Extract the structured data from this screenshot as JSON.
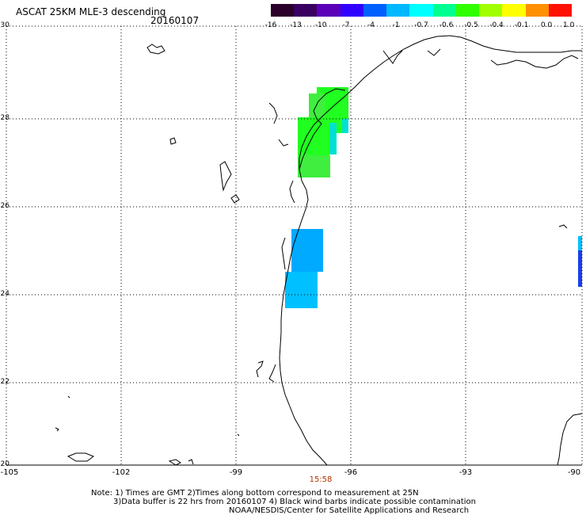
{
  "header": {
    "title": "ASCAT 25KM MLE-3 descending",
    "date": "20160107"
  },
  "colorbar": {
    "tick_labels": [
      "-16",
      "-13",
      "-10",
      "-7",
      "-4",
      "-1",
      "-0.7",
      "-0.6",
      "-0.5",
      "-0.4",
      "-0.1",
      "0.0",
      "1.0"
    ],
    "colors": [
      "#2a002a",
      "#3a0060",
      "#5a00b8",
      "#3000ff",
      "#0060ff",
      "#00b8ff",
      "#00ffff",
      "#00ff90",
      "#30ff00",
      "#a0ff00",
      "#ffff00",
      "#ff9000",
      "#ff1000"
    ]
  },
  "map": {
    "lat_labels": [
      "30",
      "28",
      "26",
      "24",
      "22",
      "20"
    ],
    "lon_labels": [
      "-105",
      "-102",
      "-99",
      "-96",
      "-93",
      "-90"
    ],
    "time_label": "15:58",
    "colors": {
      "green": "#20ff20",
      "green2": "#40ee40",
      "cyan": "#00e0d0",
      "blue": "#00aaff",
      "blue2": "#00c0ff",
      "grid": "#000000"
    }
  },
  "footer": {
    "note_line1": "Note: 1) Times are GMT 2)Times along bottom correspond to measurement at 25N",
    "note_line2": "3)Data buffer is 22 hrs from 20160107 4) Black wind barbs indicate possible contamination",
    "note_line3": "NOAA/NESDIS/Center for Satellite Applications and Research"
  }
}
